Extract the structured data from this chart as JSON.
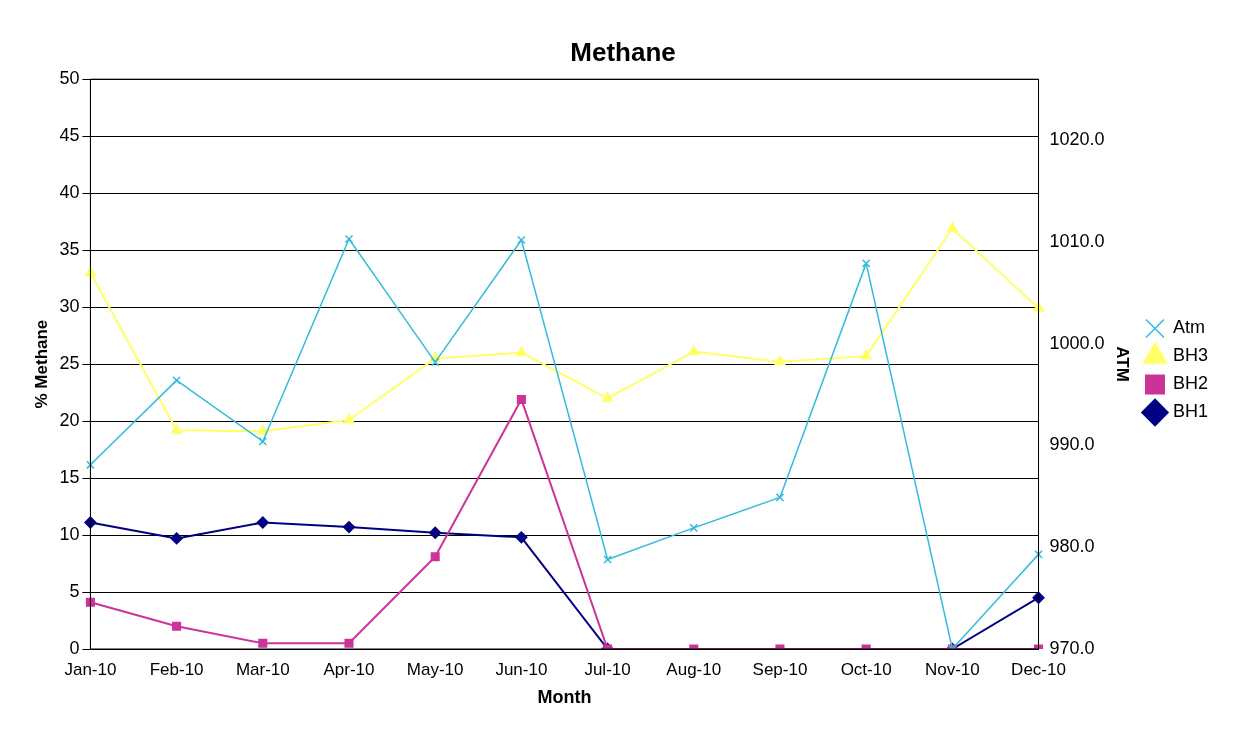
{
  "chart_data": {
    "type": "line",
    "title": "Methane",
    "xlabel": "Month",
    "ylabel": "% Methane",
    "y2label": "ATM",
    "categories": [
      "Jan-10",
      "Feb-10",
      "Mar-10",
      "Apr-10",
      "May-10",
      "Jun-10",
      "Jul-10",
      "Aug-10",
      "Sep-10",
      "Oct-10",
      "Nov-10",
      "Dec-10"
    ],
    "series": [
      {
        "name": "BH1",
        "color": "#000080",
        "marker": "diamond",
        "values": [
          11.1,
          9.7,
          11.1,
          10.7,
          10.2,
          9.8,
          0,
          null,
          null,
          null,
          0,
          4.5
        ]
      },
      {
        "name": "BH2",
        "color": "#cc3399",
        "marker": "square",
        "values": [
          4.1,
          2.0,
          0.5,
          0.5,
          8.1,
          21.9,
          0,
          0,
          0,
          0,
          0,
          0
        ]
      },
      {
        "name": "BH3",
        "color": "#ffff66",
        "marker": "triangle",
        "values": [
          33.0,
          19.2,
          19.1,
          20.1,
          25.5,
          26.0,
          22.0,
          26.1,
          25.2,
          25.7,
          36.9,
          29.9
        ]
      },
      {
        "name": "Atm",
        "color": "#33bbdd",
        "marker": "cross",
        "axis": "y2",
        "values": [
          988.1,
          996.4,
          990.4,
          1010.3,
          998.2,
          1010.2,
          978.8,
          981.9,
          984.9,
          1007.9,
          970,
          979.3
        ]
      }
    ],
    "ylim": [
      0,
      50
    ],
    "yticks": [
      0,
      5,
      10,
      15,
      20,
      25,
      30,
      35,
      40,
      45,
      50
    ],
    "y2lim": [
      970,
      1026
    ],
    "y2ticks": [
      {
        "value": 970,
        "label": "970.0"
      },
      {
        "value": 980,
        "label": "980.0"
      },
      {
        "value": 990,
        "label": "990.0"
      },
      {
        "value": 1000,
        "label": "1000.0"
      },
      {
        "value": 1010,
        "label": "1010.0"
      },
      {
        "value": 1020,
        "label": "1020.0"
      }
    ],
    "grid": "y",
    "legend": "right",
    "line_style": "solid"
  }
}
